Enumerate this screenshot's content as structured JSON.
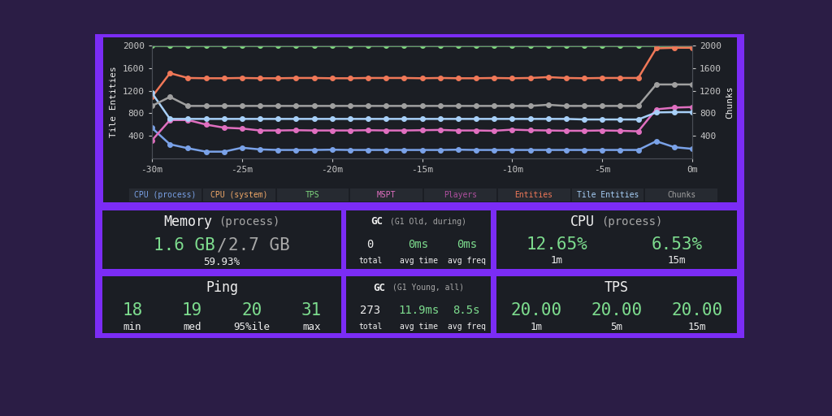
{
  "chart_data": {
    "type": "line",
    "marker": "o",
    "line_style": "solid",
    "x": [
      -30,
      -29,
      -28,
      -27,
      -26,
      -25,
      -24,
      -23,
      -22,
      -21,
      -20,
      -19,
      -18,
      -17,
      -16,
      -15,
      -14,
      -13,
      -12,
      -11,
      -10,
      -9,
      -8,
      -7,
      -6,
      -5,
      -4,
      -3,
      -2,
      -1,
      0
    ],
    "xlim": [
      -30,
      0
    ],
    "xticks": [
      {
        "value": -30,
        "label": "-30m"
      },
      {
        "value": -25,
        "label": "-25m"
      },
      {
        "value": -20,
        "label": "-20m"
      },
      {
        "value": -15,
        "label": "-15m"
      },
      {
        "value": -10,
        "label": "-10m"
      },
      {
        "value": -5,
        "label": "-5m"
      },
      {
        "value": 0,
        "label": "0m"
      }
    ],
    "y_label": "Tile Entities",
    "ylim": [
      0,
      2000
    ],
    "yticks": [
      400,
      800,
      1200,
      1600,
      2000
    ],
    "y2_label": "Chunks",
    "y2lim": [
      0,
      2000
    ],
    "y2ticks": [
      400,
      800,
      1200,
      1600,
      2000
    ],
    "series": [
      {
        "name": "CPU (process)",
        "color": "#7aa2e8",
        "values": [
          540,
          250,
          180,
          120,
          120,
          190,
          160,
          150,
          150,
          150,
          155,
          150,
          150,
          150,
          150,
          150,
          150,
          155,
          150,
          150,
          150,
          150,
          150,
          150,
          150,
          150,
          150,
          150,
          305,
          200,
          170
        ]
      },
      {
        "name": "CPU (system)",
        "color": "#f0a868",
        "values": [
          null,
          null,
          null,
          null,
          null,
          null,
          null,
          null,
          null,
          null,
          null,
          null,
          null,
          null,
          null,
          null,
          null,
          null,
          null,
          null,
          null,
          null,
          null,
          null,
          null,
          null,
          null,
          null,
          null,
          null,
          null
        ]
      },
      {
        "name": "TPS",
        "color": "#7ed67e",
        "values": [
          2000,
          2000,
          2000,
          2000,
          2000,
          2000,
          2000,
          2000,
          2000,
          2000,
          2000,
          2000,
          2000,
          2000,
          2000,
          2000,
          2000,
          2000,
          2000,
          2000,
          2000,
          2000,
          2000,
          2000,
          2000,
          2000,
          2000,
          2000,
          2000,
          2000,
          2000
        ]
      },
      {
        "name": "MSPT",
        "color": "#e06fc0",
        "values": [
          320,
          680,
          680,
          600,
          545,
          530,
          495,
          495,
          500,
          495,
          495,
          495,
          500,
          495,
          495,
          500,
          505,
          495,
          495,
          490,
          510,
          500,
          495,
          490,
          490,
          495,
          490,
          480,
          870,
          900,
          910
        ]
      },
      {
        "name": "Players",
        "color": "#b050a0",
        "values": [
          null,
          null,
          null,
          null,
          null,
          null,
          null,
          null,
          null,
          null,
          null,
          null,
          null,
          null,
          null,
          null,
          null,
          null,
          null,
          null,
          null,
          null,
          null,
          null,
          null,
          null,
          null,
          null,
          null,
          null,
          null
        ]
      },
      {
        "name": "Entities",
        "color": "#f07858",
        "values": [
          1090,
          1510,
          1425,
          1420,
          1420,
          1425,
          1420,
          1420,
          1425,
          1425,
          1420,
          1420,
          1425,
          1425,
          1425,
          1420,
          1425,
          1420,
          1420,
          1425,
          1420,
          1425,
          1440,
          1425,
          1420,
          1425,
          1425,
          1425,
          1950,
          1960,
          1960
        ]
      },
      {
        "name": "Tile Entities",
        "color": "#a8d0f8",
        "values": [
          1160,
          700,
          700,
          700,
          700,
          700,
          700,
          700,
          700,
          700,
          700,
          700,
          700,
          700,
          700,
          700,
          700,
          700,
          700,
          700,
          700,
          700,
          700,
          700,
          690,
          690,
          690,
          690,
          815,
          820,
          820
        ]
      },
      {
        "name": "Chunks",
        "color": "#a0a0a0",
        "axis": "y2",
        "values": [
          930,
          1090,
          930,
          930,
          930,
          930,
          930,
          930,
          930,
          930,
          930,
          930,
          930,
          930,
          930,
          930,
          930,
          930,
          930,
          930,
          930,
          930,
          950,
          930,
          930,
          930,
          930,
          930,
          1310,
          1310,
          1310
        ]
      }
    ]
  },
  "panels": [
    {
      "title": "Memory",
      "subtitle": "(process)",
      "values": [
        "1.6 GB",
        "2.7 GB"
      ],
      "separator": "/",
      "footer": "59.93%"
    },
    {
      "title": "GC",
      "subtitle": "(G1 Old, during)",
      "stats": [
        {
          "value": "0",
          "label": "total"
        },
        {
          "value": "0ms",
          "label": "avg time"
        },
        {
          "value": "0ms",
          "label": "avg freq"
        }
      ]
    },
    {
      "title": "CPU",
      "subtitle": "(process)",
      "stats": [
        {
          "value": "12.65%",
          "label": "1m"
        },
        {
          "value": "6.53%",
          "label": "15m"
        }
      ]
    },
    {
      "title": "Ping",
      "stats": [
        {
          "value": "18",
          "label": "min"
        },
        {
          "value": "19",
          "label": "med"
        },
        {
          "value": "20",
          "label": "95%ile"
        },
        {
          "value": "31",
          "label": "max"
        }
      ]
    },
    {
      "title": "GC",
      "subtitle": "(G1 Young, all)",
      "stats": [
        {
          "value": "273",
          "label": "total"
        },
        {
          "value": "11.9ms",
          "label": "avg time"
        },
        {
          "value": "8.5s",
          "label": "avg freq"
        }
      ]
    },
    {
      "title": "TPS",
      "stats": [
        {
          "value": "20.00",
          "label": "1m"
        },
        {
          "value": "20.00",
          "label": "5m"
        },
        {
          "value": "20.00",
          "label": "15m"
        }
      ]
    }
  ]
}
